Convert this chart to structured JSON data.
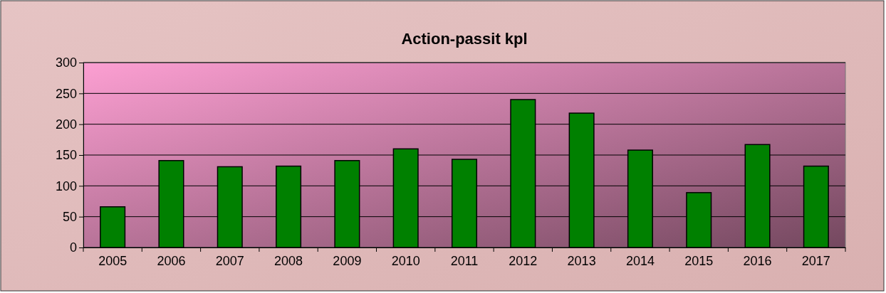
{
  "chart_data": {
    "type": "bar",
    "title": "Action-passit kpl",
    "categories": [
      "2005",
      "2006",
      "2007",
      "2008",
      "2009",
      "2010",
      "2011",
      "2012",
      "2013",
      "2014",
      "2015",
      "2016",
      "2017"
    ],
    "values": [
      66,
      141,
      131,
      132,
      141,
      160,
      143,
      240,
      218,
      158,
      89,
      167,
      132
    ],
    "color": "#008000",
    "ylim": [
      0,
      300
    ],
    "yticks": [
      0,
      50,
      100,
      150,
      200,
      250,
      300
    ],
    "grid": "y"
  }
}
